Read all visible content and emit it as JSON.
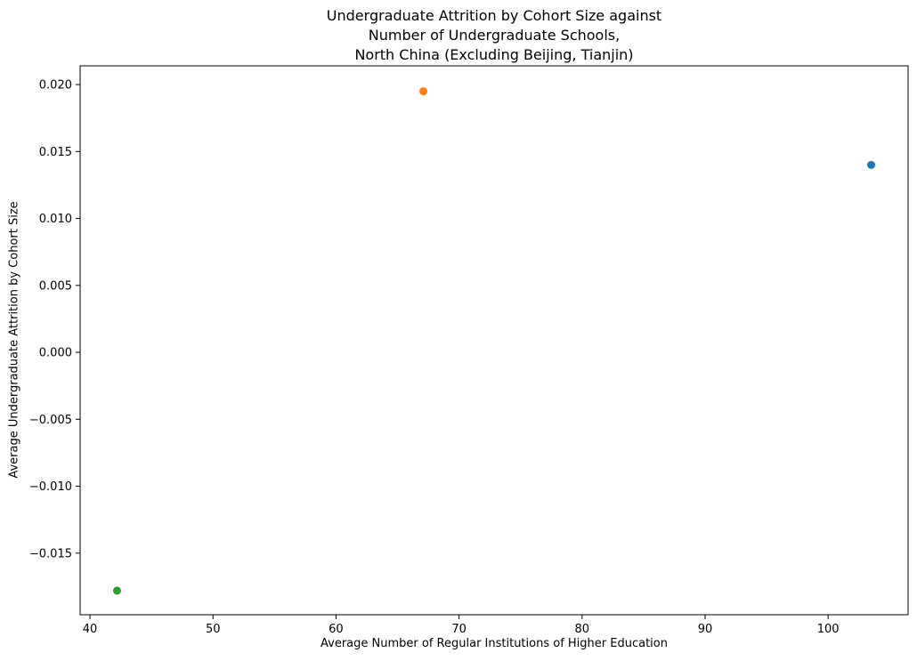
{
  "chart_data": {
    "type": "scatter",
    "title_lines": [
      "Undergraduate Attrition by Cohort Size against",
      "Number of Undergraduate Schools,",
      "North China (Excluding Beijing, Tianjin)"
    ],
    "xlabel": "Average Number of Regular Institutions of Higher Education",
    "ylabel": "Average Undergraduate Attrition by Cohort Size",
    "xlim": [
      39.2,
      106.5
    ],
    "ylim": [
      -0.0196,
      0.0214
    ],
    "xticks": [
      40,
      50,
      60,
      70,
      80,
      90,
      100
    ],
    "xtick_labels": [
      "40",
      "50",
      "60",
      "70",
      "80",
      "90",
      "100"
    ],
    "yticks": [
      -0.015,
      -0.01,
      -0.005,
      0.0,
      0.005,
      0.01,
      0.015,
      0.02
    ],
    "ytick_labels": [
      "−0.015",
      "−0.010",
      "−0.005",
      "0.000",
      "0.005",
      "0.010",
      "0.015",
      "0.020"
    ],
    "grid": false,
    "points": [
      {
        "x": 103.5,
        "y": 0.014,
        "color": "#1f77b4"
      },
      {
        "x": 67.1,
        "y": 0.0195,
        "color": "#ff7f0e"
      },
      {
        "x": 42.2,
        "y": -0.0178,
        "color": "#2ca02c"
      }
    ]
  }
}
